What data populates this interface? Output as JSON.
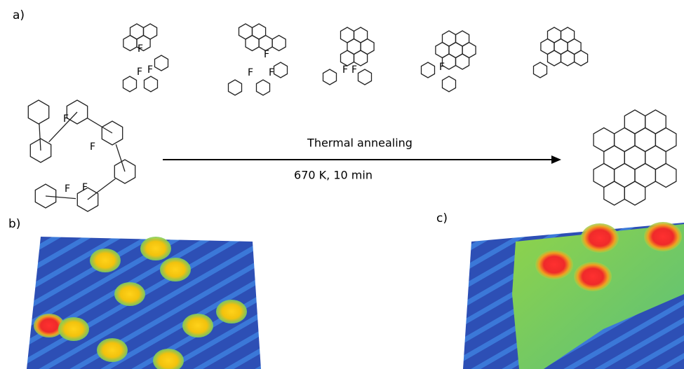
{
  "panels": {
    "a": {
      "label": "a)",
      "arrow": {
        "top_label": "Thermal annealing",
        "bottom_label": "670 K, 10 min"
      },
      "precursor": {
        "atom_labels": [
          "F",
          "F",
          "F",
          "F"
        ]
      },
      "intermediates": [
        {
          "atom_labels": [
            "F",
            "F",
            "F"
          ]
        },
        {
          "atom_labels": [
            "F",
            "F",
            "F"
          ]
        },
        {
          "atom_labels": [
            "F",
            "F"
          ]
        },
        {
          "atom_labels": [
            "F"
          ]
        }
      ]
    },
    "b": {
      "label": "b)"
    },
    "c": {
      "label": "c)"
    }
  }
}
